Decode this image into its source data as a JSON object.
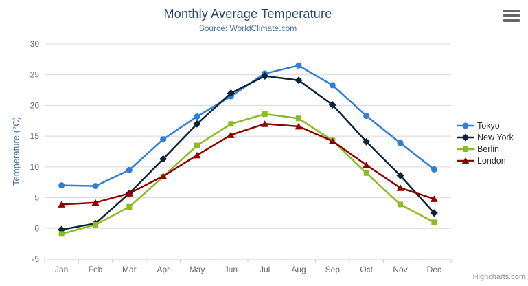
{
  "chart_data": {
    "type": "line",
    "title": "Monthly Average Temperature",
    "subtitle": "Source: WorldClimate.com",
    "categories": [
      "Jan",
      "Feb",
      "Mar",
      "Apr",
      "May",
      "Jun",
      "Jul",
      "Aug",
      "Sep",
      "Oct",
      "Nov",
      "Dec"
    ],
    "series": [
      {
        "name": "Tokyo",
        "color": "#2f7ed8",
        "marker": "circle",
        "values": [
          7.0,
          6.9,
          9.5,
          14.5,
          18.2,
          21.5,
          25.2,
          26.5,
          23.3,
          18.3,
          13.9,
          9.6
        ]
      },
      {
        "name": "New York",
        "color": "#0d233a",
        "marker": "diamond",
        "values": [
          -0.2,
          0.8,
          5.7,
          11.3,
          17.0,
          22.0,
          24.8,
          24.1,
          20.1,
          14.1,
          8.6,
          2.5
        ]
      },
      {
        "name": "Berlin",
        "color": "#8bbc21",
        "marker": "square",
        "values": [
          -0.9,
          0.6,
          3.5,
          8.4,
          13.5,
          17.0,
          18.6,
          17.9,
          14.3,
          9.0,
          3.9,
          1.0
        ]
      },
      {
        "name": "London",
        "color": "#910000",
        "marker": "triangle",
        "values": [
          3.9,
          4.2,
          5.7,
          8.5,
          11.9,
          15.2,
          17.0,
          16.6,
          14.2,
          10.3,
          6.6,
          4.8
        ]
      }
    ],
    "xlabel": "",
    "ylabel": "Temperature (°C)",
    "ylim": [
      -5,
      30
    ],
    "yticks": [
      -5,
      0,
      5,
      10,
      15,
      20,
      25,
      30
    ],
    "grid": true,
    "legend_position": "right"
  },
  "icons": {
    "context_menu": "hamburger-icon"
  },
  "credits": {
    "label": "Highcharts.com"
  },
  "colors": {
    "title": "#274b6d",
    "subtitle": "#4d759e",
    "y_axis_title": "#4572a7",
    "tick_label": "#666666",
    "grid_line": "#d8d8d8",
    "axis_line": "#c0d0e0",
    "legend_text": "#333333",
    "credits_text": "#909090",
    "background": "#ffffff"
  }
}
